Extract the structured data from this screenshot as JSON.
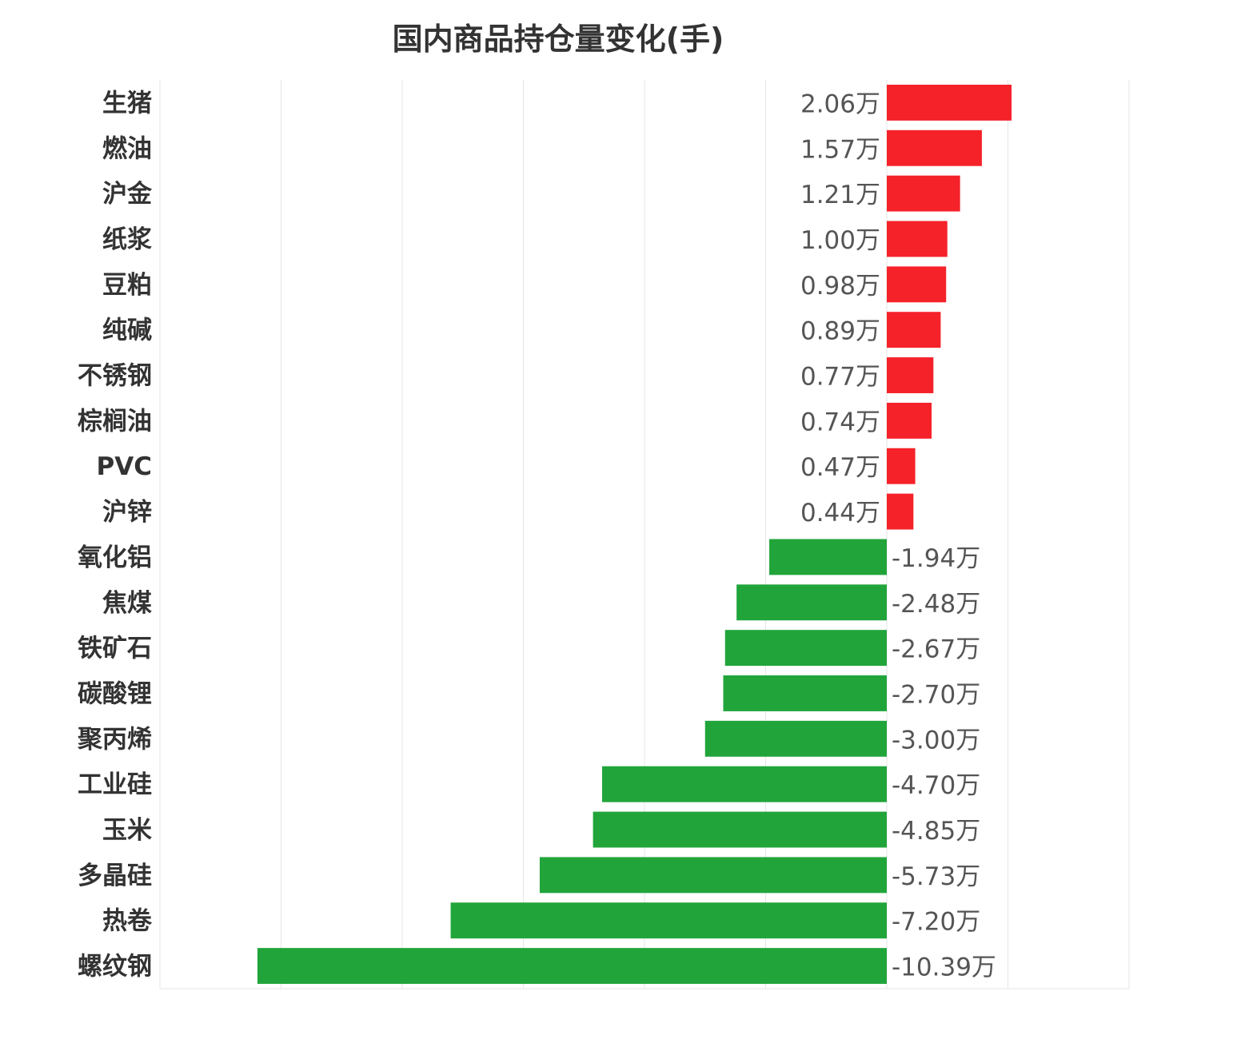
{
  "chart_data": {
    "type": "bar",
    "orientation": "horizontal",
    "title": "国内商品持仓量变化(手)",
    "unit_suffix": "万",
    "categories": [
      "生猪",
      "燃油",
      "沪金",
      "纸浆",
      "豆粕",
      "纯碱",
      "不锈钢",
      "棕榈油",
      "PVC",
      "沪锌",
      "氧化铝",
      "焦煤",
      "铁矿石",
      "碳酸锂",
      "聚丙烯",
      "工业硅",
      "玉米",
      "多晶硅",
      "热卷",
      "螺纹钢"
    ],
    "values": [
      2.06,
      1.57,
      1.21,
      1.0,
      0.98,
      0.89,
      0.77,
      0.74,
      0.47,
      0.44,
      -1.94,
      -2.48,
      -2.67,
      -2.7,
      -3.0,
      -4.7,
      -4.85,
      -5.73,
      -7.2,
      -10.39
    ],
    "value_labels": [
      "2.06万",
      "1.57万",
      "1.21万",
      "1.00万",
      "0.98万",
      "0.89万",
      "0.77万",
      "0.74万",
      "0.47万",
      "0.44万",
      "-1.94万",
      "-2.48万",
      "-2.67万",
      "-2.70万",
      "-3.00万",
      "-4.70万",
      "-4.85万",
      "-5.73万",
      "-7.20万",
      "-10.39万"
    ],
    "xlim": [
      -12,
      4
    ],
    "grid_step": 2,
    "grid": true,
    "legend": false,
    "colors": {
      "positive": "#f5222a",
      "negative": "#21a53b",
      "grid": "#e6e6e6",
      "label": "#555555",
      "category": "#333333",
      "title": "#333333"
    }
  }
}
